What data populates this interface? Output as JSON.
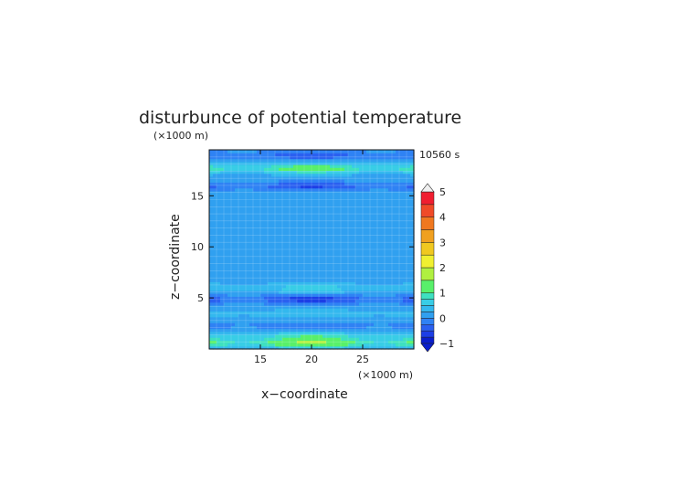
{
  "chart_data": {
    "type": "heatmap",
    "title": "disturbunce of potential temperature",
    "xlabel": "x−coordinate",
    "ylabel": "z−coordinate",
    "x_unit": "(×1000 m)",
    "y_unit": "(×1000 m)",
    "time_label": "10560 s",
    "xlim": [
      10,
      30
    ],
    "ylim": [
      0,
      19.5
    ],
    "x_ticks": [
      15,
      20,
      25
    ],
    "y_ticks": [
      5,
      10,
      15
    ],
    "grid": true,
    "colorbar": {
      "ticks": [
        -1,
        0,
        1,
        2,
        3,
        4,
        5
      ],
      "levels": [
        -1,
        -0.75,
        -0.5,
        -0.25,
        0,
        0.25,
        0.5,
        0.75,
        1,
        1.5,
        2,
        2.5,
        3,
        3.5,
        4,
        4.5,
        5
      ],
      "colors": [
        "#0a1ecc",
        "#1c3ee6",
        "#2a60f0",
        "#2f82f4",
        "#30a0f0",
        "#33b8ee",
        "#38cde6",
        "#3ee0c0",
        "#58f06a",
        "#b0f040",
        "#f0f030",
        "#f0c820",
        "#f0a020",
        "#f07820",
        "#f04a28",
        "#f01e30",
        "#f59aa0"
      ]
    },
    "field": {
      "background": 0.15,
      "bands": [
        {
          "z": 0.6,
          "value": 1.4
        },
        {
          "z": 1.3,
          "value": 0.75
        },
        {
          "z": 2.3,
          "value": -0.4
        },
        {
          "z": 3.5,
          "value": 0.3
        },
        {
          "z": 4.9,
          "value": -0.8
        },
        {
          "z": 6.0,
          "value": 0.5
        },
        {
          "z": 9.0,
          "value": 0.05
        },
        {
          "z": 13.6,
          "value": -0.05
        },
        {
          "z": 16.0,
          "value": -0.7
        },
        {
          "z": 17.7,
          "value": 1.2
        },
        {
          "z": 19.0,
          "value": -0.6
        }
      ]
    }
  }
}
